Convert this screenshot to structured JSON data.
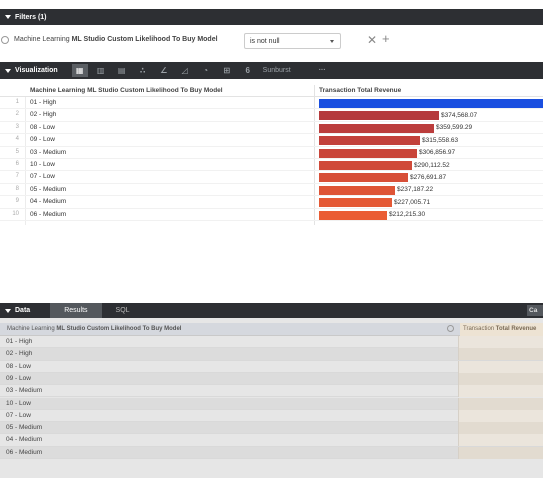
{
  "filters": {
    "header_title": "Filters (1)",
    "field_prefix": "Machine Learning ",
    "field_bold": "ML Studio Custom Likelihood To Buy Model",
    "operator": "is not null",
    "remove_symbol": "✕",
    "add_symbol": "+"
  },
  "visualization": {
    "header_title": "Visualization",
    "toolbar_icons": [
      "table-icon",
      "column-chart-icon",
      "bar-chart-icon",
      "scatter-icon",
      "line-chart-icon",
      "area-chart-icon",
      "pie-chart-icon",
      "map-icon",
      "single-value-icon"
    ],
    "sunburst_label": "Sunburst",
    "more_label": "···",
    "column_label": "Machine Learning ML Studio Custom Likelihood To Buy Model",
    "column_revenue": "Transaction Total Revenue",
    "rows": [
      {
        "num": "1",
        "label": "01 - High",
        "value": null,
        "value_label": "",
        "color": "#1a4fe0"
      },
      {
        "num": "2",
        "label": "02 - High",
        "value": 374568.07,
        "value_label": "$374,568.07",
        "color": "#b53a3d"
      },
      {
        "num": "3",
        "label": "08 - Low",
        "value": 359599.29,
        "value_label": "$359,599.29",
        "color": "#bb3d3c"
      },
      {
        "num": "4",
        "label": "09 - Low",
        "value": 315558.63,
        "value_label": "$315,558.63",
        "color": "#c2413b"
      },
      {
        "num": "5",
        "label": "03 - Medium",
        "value": 306856.97,
        "value_label": "$306,856.97",
        "color": "#c9453a"
      },
      {
        "num": "6",
        "label": "10 - Low",
        "value": 290112.52,
        "value_label": "$290,112.52",
        "color": "#d04a39"
      },
      {
        "num": "7",
        "label": "07 - Low",
        "value": 276691.87,
        "value_label": "$276,691.87",
        "color": "#d74f38"
      },
      {
        "num": "8",
        "label": "05 - Medium",
        "value": 237187.22,
        "value_label": "$237,187.22",
        "color": "#de5436"
      },
      {
        "num": "9",
        "label": "04 - Medium",
        "value": 227005.71,
        "value_label": "$227,005.71",
        "color": "#e45935"
      },
      {
        "num": "10",
        "label": "06 - Medium",
        "value": 212215.3,
        "value_label": "$212,215.30",
        "color": "#ea5d34"
      }
    ]
  },
  "data": {
    "header_title": "Data",
    "tabs": [
      {
        "label": "Results",
        "active": true
      },
      {
        "label": "SQL",
        "active": false
      }
    ],
    "cal_label": "Ca",
    "column_label_prefix": "Machine Learning ",
    "column_label_bold": "ML Studio Custom Likelihood To Buy Model",
    "column_revenue_prefix": "Transaction ",
    "column_revenue_bold": "Total Revenue",
    "rows": [
      "01 - High",
      "02 - High",
      "08 - Low",
      "09 - Low",
      "03 - Medium",
      "10 - Low",
      "07 - Low",
      "05 - Medium",
      "04 - Medium",
      "06 - Medium"
    ]
  }
}
